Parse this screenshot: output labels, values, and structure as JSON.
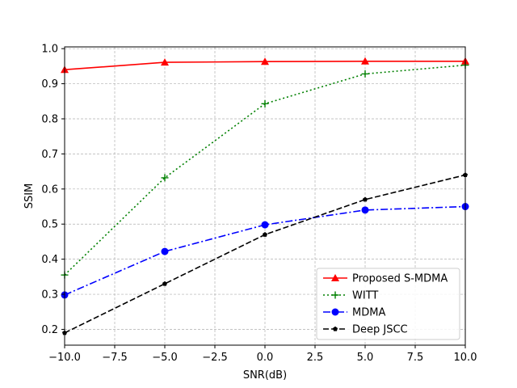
{
  "chart_data": {
    "type": "line",
    "xlabel": "SNR(dB)",
    "ylabel": "SSIM",
    "xlim": [
      -10,
      10
    ],
    "ylim": [
      0.155,
      1.005
    ],
    "x_ticks": [
      -10,
      -7.5,
      -5,
      -2.5,
      0,
      2.5,
      5,
      7.5,
      10
    ],
    "x_tick_labels": [
      "−10.0",
      "−7.5",
      "−5.0",
      "−2.5",
      "0.0",
      "2.5",
      "5.0",
      "7.5",
      "10.0"
    ],
    "y_ticks": [
      0.2,
      0.3,
      0.4,
      0.5,
      0.6,
      0.7,
      0.8,
      0.9,
      1.0
    ],
    "y_tick_labels": [
      "0.2",
      "0.3",
      "0.4",
      "0.5",
      "0.6",
      "0.7",
      "0.8",
      "0.9",
      "1.0"
    ],
    "grid": true,
    "legend_position": "lower-right",
    "x": [
      -10,
      -5,
      0,
      5,
      10
    ],
    "series": [
      {
        "name": "Proposed S-MDMA",
        "values": [
          0.94,
          0.961,
          0.963,
          0.964,
          0.964
        ],
        "color": "#ff0000",
        "dash": "solid",
        "marker": "triangle"
      },
      {
        "name": "WITT",
        "values": [
          0.355,
          0.632,
          0.843,
          0.928,
          0.953
        ],
        "color": "#008000",
        "dash": "dotted",
        "marker": "plus"
      },
      {
        "name": "MDMA",
        "values": [
          0.298,
          0.422,
          0.498,
          0.54,
          0.55
        ],
        "color": "#0000ff",
        "dash": "dashdot",
        "marker": "circle"
      },
      {
        "name": "Deep JSCC",
        "values": [
          0.19,
          0.33,
          0.47,
          0.57,
          0.64
        ],
        "color": "#000000",
        "dash": "dashed",
        "marker": "pentagon"
      }
    ]
  }
}
